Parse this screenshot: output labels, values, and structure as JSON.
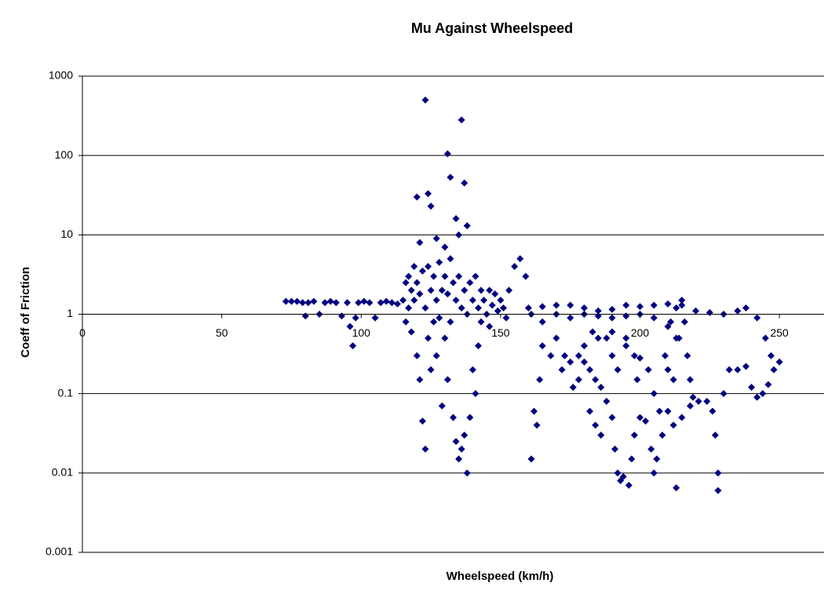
{
  "chart_data": {
    "type": "scatter",
    "title": "Mu Against Wheelspeed",
    "x_label": "Wheelspeed (km/h)",
    "y_label": "Coeff of Friction",
    "color": "#000080",
    "marker": "diamond",
    "y_log": true,
    "grid": true,
    "x_axis_crossing": 1,
    "xlim": [
      0,
      266
    ],
    "xticks": [
      0,
      50,
      100,
      150,
      200,
      250
    ],
    "ylim": [
      0.001,
      1000
    ],
    "yticks": [
      0.001,
      0.01,
      0.1,
      1,
      10,
      100,
      1000
    ],
    "x": [
      73,
      75,
      77,
      79,
      80,
      81,
      83,
      85,
      87,
      89,
      91,
      93,
      95,
      96,
      97,
      98,
      99,
      101,
      103,
      105,
      107,
      109,
      111,
      113,
      115,
      116,
      116,
      117,
      117,
      118,
      118,
      119,
      119,
      120,
      120,
      121,
      121,
      122,
      122,
      123,
      123,
      124,
      124,
      125,
      125,
      126,
      126,
      127,
      127,
      128,
      128,
      129,
      129,
      130,
      130,
      131,
      131,
      132,
      132,
      133,
      133,
      134,
      134,
      135,
      135,
      136,
      136,
      137,
      137,
      138,
      138,
      139,
      139,
      140,
      140,
      141,
      141,
      142,
      142,
      143,
      143,
      144,
      145,
      146,
      146,
      147,
      148,
      149,
      150,
      151,
      152,
      153,
      155,
      157,
      159,
      161,
      161,
      162,
      163,
      164,
      165,
      123,
      136,
      131,
      132,
      137,
      124,
      120,
      125,
      134,
      135,
      138,
      121,
      127,
      130,
      160,
      165,
      170,
      175,
      180,
      185,
      190,
      195,
      200,
      205,
      210,
      215,
      220,
      225,
      230,
      235,
      238,
      242,
      245,
      247,
      170,
      175,
      180,
      185,
      190,
      195,
      200,
      205,
      210,
      213,
      165,
      170,
      173,
      175,
      178,
      180,
      182,
      184,
      176,
      172,
      168,
      186,
      188,
      190,
      191,
      192,
      193,
      194,
      196,
      197,
      198,
      200,
      202,
      204,
      205,
      206,
      208,
      210,
      212,
      213,
      215,
      218,
      221,
      224,
      226,
      227,
      228,
      228,
      230,
      232,
      235,
      238,
      240,
      242,
      244,
      246,
      248,
      250,
      185,
      190,
      195,
      198,
      200,
      203,
      205,
      207,
      209,
      211,
      213,
      215,
      216,
      217,
      218,
      219,
      210,
      212,
      214,
      199,
      195,
      192,
      190,
      188,
      183,
      180,
      178,
      182,
      184,
      186
    ],
    "values": [
      1.45,
      1.45,
      1.45,
      1.4,
      0.95,
      1.4,
      1.45,
      1,
      1.4,
      1.45,
      1.4,
      0.95,
      1.4,
      0.7,
      0.4,
      0.9,
      1.4,
      1.45,
      1.4,
      0.9,
      1.4,
      1.45,
      1.4,
      1.35,
      1.5,
      2.5,
      0.8,
      3,
      1.2,
      2,
      0.6,
      4,
      1.5,
      2.5,
      0.3,
      1.8,
      0.15,
      3.5,
      0.045,
      1.2,
      0.02,
      4,
      0.5,
      2,
      0.2,
      3,
      0.8,
      1.5,
      0.3,
      4.5,
      0.9,
      2,
      0.07,
      3,
      0.5,
      1.8,
      0.15,
      5,
      0.8,
      2.5,
      0.05,
      1.5,
      0.025,
      3,
      0.015,
      1.2,
      0.02,
      2,
      0.03,
      1,
      0.01,
      2.5,
      0.05,
      1.5,
      0.2,
      3,
      0.1,
      1.2,
      0.4,
      2,
      0.8,
      1.5,
      1,
      2,
      0.7,
      1.3,
      1.8,
      1.1,
      1.5,
      1.2,
      0.9,
      2,
      4,
      5,
      3,
      1,
      0.015,
      0.06,
      0.04,
      0.15,
      0.4,
      500,
      280,
      105,
      53,
      45,
      33,
      30,
      23,
      16,
      10,
      13,
      8,
      9,
      7,
      1.2,
      1.25,
      1.3,
      1.3,
      1.2,
      1.1,
      1.15,
      1.3,
      1.25,
      1.3,
      1.35,
      1.3,
      1.1,
      1.05,
      1,
      1.1,
      1.2,
      0.9,
      0.5,
      0.3,
      1,
      0.9,
      1,
      0.95,
      0.9,
      0.95,
      1,
      0.9,
      0.7,
      0.5,
      0.8,
      0.5,
      0.3,
      0.25,
      0.3,
      0.25,
      0.2,
      0.15,
      0.12,
      0.2,
      0.3,
      0.12,
      0.08,
      0.05,
      0.02,
      0.01,
      0.008,
      0.009,
      0.007,
      0.015,
      0.03,
      0.05,
      0.045,
      0.02,
      0.01,
      0.015,
      0.03,
      0.06,
      0.04,
      0.0065,
      0.05,
      0.07,
      0.08,
      0.08,
      0.06,
      0.03,
      0.01,
      0.006,
      0.1,
      0.2,
      0.2,
      0.22,
      0.12,
      0.09,
      0.1,
      0.13,
      0.2,
      0.25,
      0.5,
      0.6,
      0.4,
      0.3,
      0.28,
      0.2,
      0.1,
      0.06,
      0.3,
      0.8,
      1.2,
      1.5,
      0.8,
      0.3,
      0.15,
      0.09,
      0.2,
      0.15,
      0.5,
      0.15,
      0.5,
      0.2,
      0.3,
      0.5,
      0.6,
      0.4,
      0.15,
      0.06,
      0.04,
      0.03
    ]
  }
}
